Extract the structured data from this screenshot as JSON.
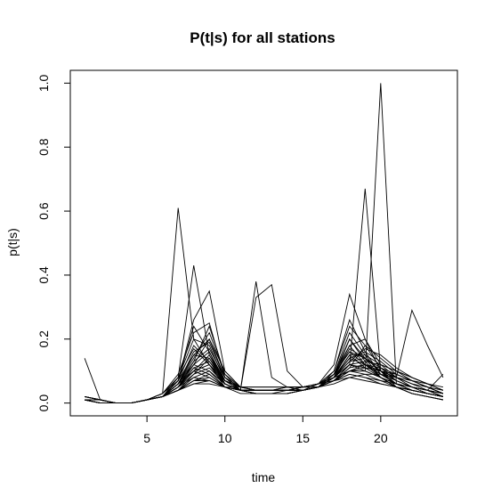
{
  "chart_data": {
    "type": "line",
    "title": "P(t|s) for all stations",
    "xlabel": "time",
    "ylabel": "p(t|s)",
    "xlim": [
      0.08,
      24.92
    ],
    "ylim": [
      -0.04,
      1.04
    ],
    "xticks": [
      5,
      10,
      15,
      20
    ],
    "xtick_labels": [
      "5",
      "10",
      "15",
      "20"
    ],
    "yticks": [
      0.0,
      0.2,
      0.4,
      0.6,
      0.8,
      1.0
    ],
    "ytick_labels": [
      "0.0",
      "0.2",
      "0.4",
      "0.6",
      "0.8",
      "1.0"
    ],
    "grid": false,
    "legend": "none",
    "line_color": "#000000",
    "x": [
      1,
      2,
      3,
      4,
      5,
      6,
      7,
      8,
      9,
      10,
      11,
      12,
      13,
      14,
      15,
      16,
      17,
      18,
      19,
      20,
      21,
      22,
      23,
      24
    ],
    "series": [
      {
        "values": [
          0.14,
          0.01,
          0.0,
          0.0,
          0.01,
          0.02,
          0.05,
          0.12,
          0.1,
          0.05,
          0.03,
          0.03,
          0.03,
          0.04,
          0.04,
          0.05,
          0.08,
          0.12,
          0.1,
          0.08,
          0.05,
          0.04,
          0.03,
          0.02
        ]
      },
      {
        "values": [
          0.01,
          0.0,
          0.0,
          0.0,
          0.01,
          0.03,
          0.61,
          0.2,
          0.12,
          0.05,
          0.04,
          0.04,
          0.04,
          0.04,
          0.04,
          0.05,
          0.07,
          0.1,
          0.09,
          0.07,
          0.05,
          0.04,
          0.03,
          0.02
        ]
      },
      {
        "values": [
          0.01,
          0.0,
          0.0,
          0.0,
          0.01,
          0.02,
          0.08,
          0.43,
          0.15,
          0.06,
          0.04,
          0.03,
          0.03,
          0.03,
          0.04,
          0.05,
          0.09,
          0.18,
          0.12,
          0.08,
          0.05,
          0.03,
          0.02,
          0.01
        ]
      },
      {
        "values": [
          0.02,
          0.01,
          0.0,
          0.0,
          0.01,
          0.02,
          0.06,
          0.1,
          0.08,
          0.05,
          0.04,
          0.38,
          0.08,
          0.05,
          0.04,
          0.05,
          0.06,
          0.08,
          0.07,
          0.06,
          0.05,
          0.04,
          0.03,
          0.02
        ]
      },
      {
        "values": [
          0.01,
          0.0,
          0.0,
          0.0,
          0.01,
          0.02,
          0.05,
          0.08,
          0.07,
          0.05,
          0.04,
          0.33,
          0.37,
          0.1,
          0.05,
          0.05,
          0.07,
          0.09,
          0.08,
          0.06,
          0.05,
          0.04,
          0.03,
          0.02
        ]
      },
      {
        "values": [
          0.01,
          0.01,
          0.0,
          0.0,
          0.01,
          0.02,
          0.04,
          0.07,
          0.07,
          0.05,
          0.04,
          0.04,
          0.04,
          0.04,
          0.04,
          0.05,
          0.07,
          0.12,
          0.67,
          0.1,
          0.05,
          0.04,
          0.03,
          0.02
        ]
      },
      {
        "values": [
          0.01,
          0.0,
          0.0,
          0.0,
          0.01,
          0.02,
          0.04,
          0.06,
          0.06,
          0.05,
          0.04,
          0.04,
          0.04,
          0.04,
          0.04,
          0.05,
          0.08,
          0.1,
          0.1,
          1.0,
          0.06,
          0.04,
          0.03,
          0.02
        ]
      },
      {
        "values": [
          0.01,
          0.01,
          0.0,
          0.0,
          0.01,
          0.02,
          0.04,
          0.07,
          0.08,
          0.05,
          0.04,
          0.04,
          0.04,
          0.04,
          0.05,
          0.05,
          0.07,
          0.1,
          0.12,
          0.1,
          0.08,
          0.29,
          0.18,
          0.08
        ]
      },
      {
        "values": [
          0.02,
          0.01,
          0.0,
          0.0,
          0.01,
          0.02,
          0.07,
          0.26,
          0.35,
          0.1,
          0.05,
          0.04,
          0.04,
          0.04,
          0.04,
          0.05,
          0.08,
          0.14,
          0.12,
          0.09,
          0.06,
          0.04,
          0.03,
          0.02
        ]
      },
      {
        "values": [
          0.01,
          0.0,
          0.0,
          0.0,
          0.01,
          0.03,
          0.09,
          0.22,
          0.25,
          0.08,
          0.04,
          0.03,
          0.03,
          0.03,
          0.04,
          0.06,
          0.12,
          0.34,
          0.2,
          0.1,
          0.06,
          0.04,
          0.03,
          0.02
        ]
      },
      {
        "values": [
          0.01,
          0.01,
          0.0,
          0.0,
          0.01,
          0.02,
          0.06,
          0.15,
          0.2,
          0.08,
          0.04,
          0.04,
          0.04,
          0.04,
          0.04,
          0.05,
          0.1,
          0.26,
          0.16,
          0.09,
          0.06,
          0.04,
          0.03,
          0.02
        ]
      },
      {
        "values": [
          0.02,
          0.01,
          0.0,
          0.0,
          0.01,
          0.02,
          0.07,
          0.18,
          0.13,
          0.06,
          0.04,
          0.04,
          0.04,
          0.04,
          0.04,
          0.05,
          0.08,
          0.17,
          0.14,
          0.1,
          0.07,
          0.05,
          0.04,
          0.09
        ]
      },
      {
        "values": [
          0.01,
          0.0,
          0.0,
          0.0,
          0.01,
          0.02,
          0.05,
          0.12,
          0.16,
          0.07,
          0.04,
          0.04,
          0.04,
          0.04,
          0.04,
          0.05,
          0.08,
          0.15,
          0.15,
          0.12,
          0.1,
          0.08,
          0.06,
          0.05
        ]
      },
      {
        "values": [
          0.01,
          0.0,
          0.0,
          0.0,
          0.01,
          0.02,
          0.04,
          0.09,
          0.14,
          0.06,
          0.04,
          0.03,
          0.03,
          0.03,
          0.04,
          0.05,
          0.07,
          0.11,
          0.18,
          0.14,
          0.1,
          0.07,
          0.05,
          0.03
        ]
      },
      {
        "values": [
          0.02,
          0.01,
          0.0,
          0.0,
          0.01,
          0.03,
          0.08,
          0.2,
          0.18,
          0.07,
          0.05,
          0.04,
          0.04,
          0.04,
          0.04,
          0.05,
          0.09,
          0.22,
          0.15,
          0.09,
          0.06,
          0.04,
          0.03,
          0.02
        ]
      },
      {
        "values": [
          0.01,
          0.01,
          0.0,
          0.0,
          0.01,
          0.02,
          0.05,
          0.1,
          0.12,
          0.06,
          0.04,
          0.04,
          0.04,
          0.04,
          0.05,
          0.06,
          0.08,
          0.12,
          0.13,
          0.12,
          0.1,
          0.08,
          0.06,
          0.04
        ]
      },
      {
        "values": [
          0.01,
          0.0,
          0.0,
          0.0,
          0.01,
          0.02,
          0.04,
          0.06,
          0.07,
          0.05,
          0.05,
          0.05,
          0.05,
          0.05,
          0.05,
          0.06,
          0.08,
          0.1,
          0.11,
          0.1,
          0.09,
          0.07,
          0.05,
          0.03
        ]
      },
      {
        "values": [
          0.01,
          0.0,
          0.0,
          0.0,
          0.01,
          0.02,
          0.06,
          0.13,
          0.17,
          0.08,
          0.04,
          0.03,
          0.03,
          0.03,
          0.04,
          0.05,
          0.09,
          0.2,
          0.13,
          0.08,
          0.05,
          0.03,
          0.02,
          0.01
        ]
      },
      {
        "values": [
          0.02,
          0.01,
          0.0,
          0.0,
          0.01,
          0.02,
          0.05,
          0.11,
          0.09,
          0.05,
          0.04,
          0.04,
          0.04,
          0.05,
          0.05,
          0.06,
          0.1,
          0.24,
          0.18,
          0.11,
          0.07,
          0.05,
          0.03,
          0.02
        ]
      },
      {
        "values": [
          0.01,
          0.01,
          0.0,
          0.0,
          0.01,
          0.02,
          0.06,
          0.14,
          0.22,
          0.09,
          0.05,
          0.04,
          0.04,
          0.04,
          0.04,
          0.05,
          0.07,
          0.1,
          0.1,
          0.08,
          0.06,
          0.05,
          0.04,
          0.03
        ]
      },
      {
        "values": [
          0.01,
          0.0,
          0.0,
          0.0,
          0.01,
          0.02,
          0.05,
          0.1,
          0.15,
          0.07,
          0.05,
          0.04,
          0.04,
          0.04,
          0.04,
          0.05,
          0.08,
          0.14,
          0.16,
          0.13,
          0.09,
          0.07,
          0.05,
          0.04
        ]
      },
      {
        "values": [
          0.02,
          0.01,
          0.0,
          0.0,
          0.01,
          0.03,
          0.07,
          0.15,
          0.14,
          0.07,
          0.04,
          0.04,
          0.04,
          0.04,
          0.04,
          0.05,
          0.08,
          0.18,
          0.2,
          0.12,
          0.08,
          0.05,
          0.04,
          0.03
        ]
      },
      {
        "values": [
          0.01,
          0.01,
          0.0,
          0.0,
          0.01,
          0.02,
          0.05,
          0.09,
          0.11,
          0.06,
          0.04,
          0.04,
          0.04,
          0.04,
          0.05,
          0.05,
          0.07,
          0.09,
          0.08,
          0.07,
          0.06,
          0.05,
          0.04,
          0.03
        ]
      },
      {
        "values": [
          0.01,
          0.0,
          0.0,
          0.0,
          0.01,
          0.02,
          0.06,
          0.16,
          0.19,
          0.08,
          0.05,
          0.04,
          0.04,
          0.04,
          0.04,
          0.05,
          0.09,
          0.16,
          0.12,
          0.09,
          0.07,
          0.05,
          0.04,
          0.02
        ]
      },
      {
        "values": [
          0.02,
          0.01,
          0.0,
          0.0,
          0.01,
          0.02,
          0.04,
          0.08,
          0.1,
          0.06,
          0.04,
          0.04,
          0.04,
          0.04,
          0.04,
          0.05,
          0.07,
          0.12,
          0.11,
          0.1,
          0.08,
          0.06,
          0.05,
          0.03
        ]
      },
      {
        "values": [
          0.01,
          0.0,
          0.0,
          0.0,
          0.01,
          0.02,
          0.07,
          0.24,
          0.16,
          0.06,
          0.04,
          0.03,
          0.03,
          0.03,
          0.04,
          0.05,
          0.08,
          0.2,
          0.14,
          0.08,
          0.05,
          0.03,
          0.02,
          0.01
        ]
      },
      {
        "values": [
          0.01,
          0.01,
          0.0,
          0.0,
          0.01,
          0.02,
          0.05,
          0.11,
          0.13,
          0.07,
          0.05,
          0.05,
          0.05,
          0.05,
          0.05,
          0.06,
          0.07,
          0.08,
          0.09,
          0.09,
          0.08,
          0.07,
          0.06,
          0.04
        ]
      },
      {
        "values": [
          0.02,
          0.01,
          0.0,
          0.0,
          0.01,
          0.02,
          0.06,
          0.12,
          0.2,
          0.1,
          0.05,
          0.04,
          0.04,
          0.04,
          0.04,
          0.05,
          0.08,
          0.13,
          0.14,
          0.11,
          0.08,
          0.06,
          0.04,
          0.02
        ]
      },
      {
        "values": [
          0.01,
          0.0,
          0.0,
          0.0,
          0.01,
          0.02,
          0.04,
          0.07,
          0.09,
          0.05,
          0.04,
          0.04,
          0.04,
          0.04,
          0.05,
          0.06,
          0.09,
          0.16,
          0.14,
          0.1,
          0.07,
          0.05,
          0.04,
          0.02
        ]
      },
      {
        "values": [
          0.01,
          0.01,
          0.0,
          0.0,
          0.01,
          0.03,
          0.08,
          0.17,
          0.12,
          0.06,
          0.04,
          0.04,
          0.04,
          0.04,
          0.04,
          0.05,
          0.07,
          0.11,
          0.12,
          0.11,
          0.09,
          0.07,
          0.05,
          0.03
        ]
      },
      {
        "values": [
          0.02,
          0.01,
          0.0,
          0.0,
          0.01,
          0.02,
          0.05,
          0.13,
          0.24,
          0.09,
          0.04,
          0.03,
          0.03,
          0.03,
          0.04,
          0.05,
          0.08,
          0.15,
          0.11,
          0.08,
          0.06,
          0.04,
          0.03,
          0.02
        ]
      },
      {
        "values": [
          0.01,
          0.0,
          0.0,
          0.0,
          0.01,
          0.02,
          0.05,
          0.1,
          0.12,
          0.07,
          0.05,
          0.04,
          0.04,
          0.05,
          0.05,
          0.06,
          0.08,
          0.13,
          0.17,
          0.15,
          0.11,
          0.08,
          0.06,
          0.04
        ]
      }
    ]
  }
}
